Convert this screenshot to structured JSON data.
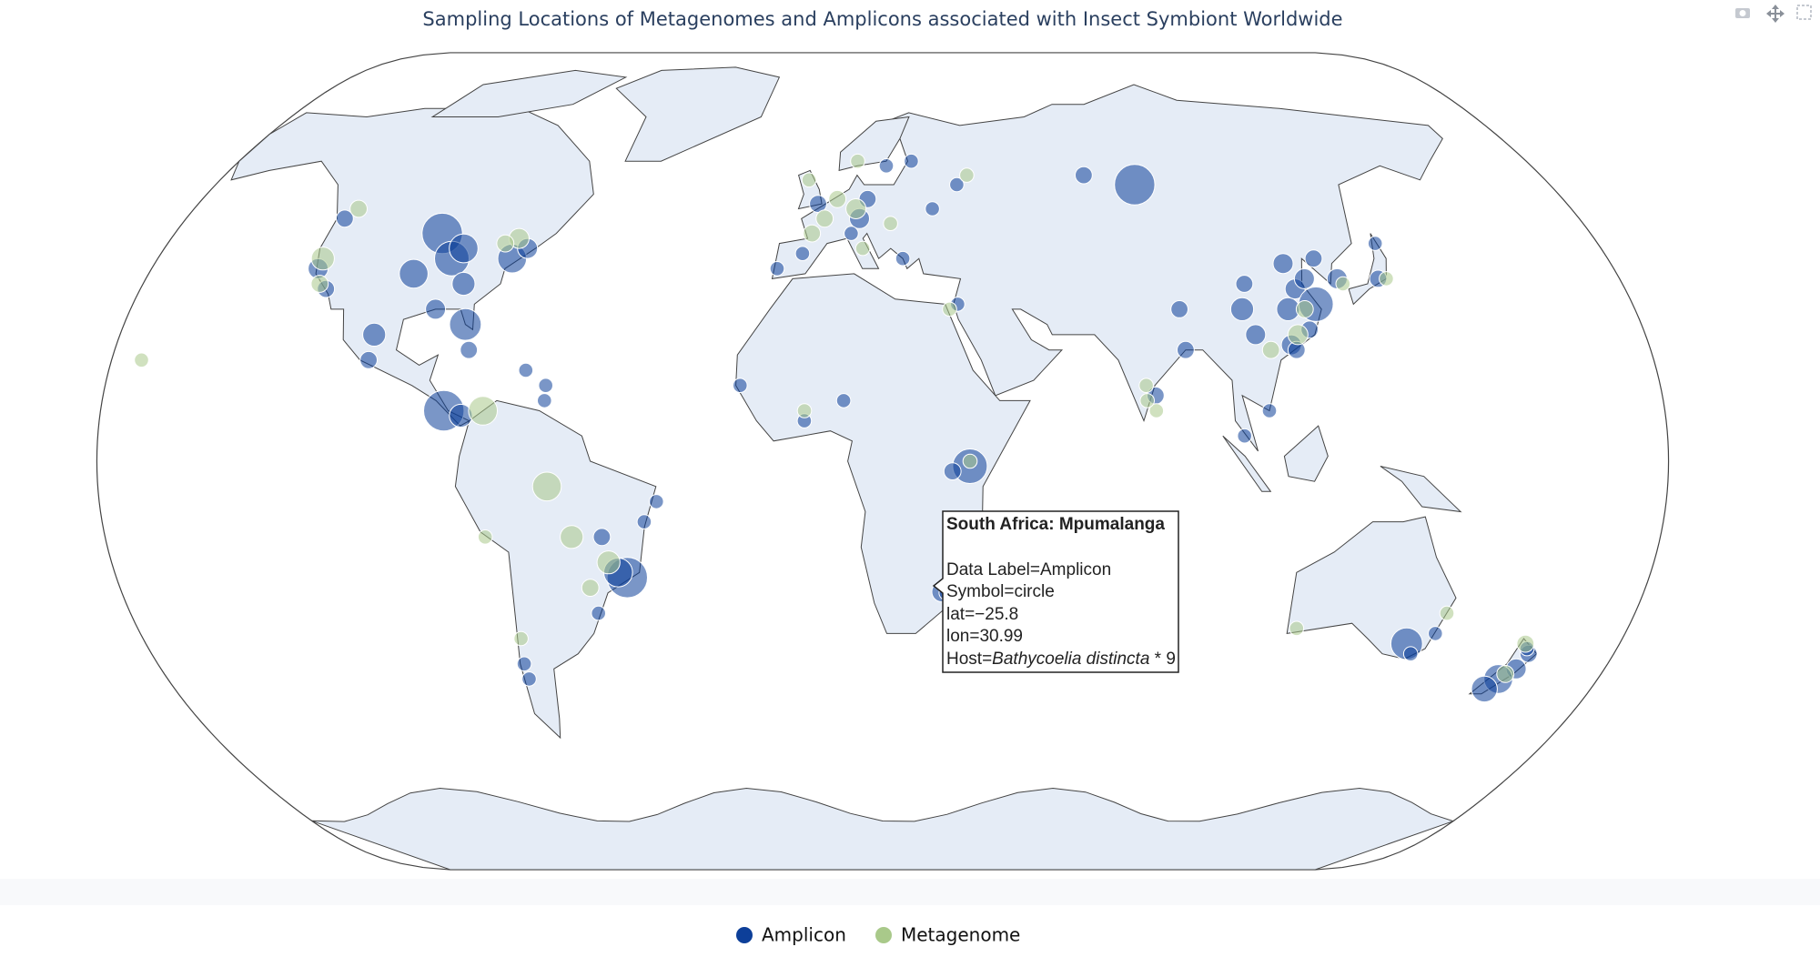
{
  "chart_data": {
    "type": "scattergeo",
    "title": "Sampling Locations of Metagenomes and Amplicons associated with Insect Symbiont Worldwide",
    "series": [
      {
        "name": "Amplicon",
        "color": "#0d3f99",
        "lat": [
          45,
          40,
          42,
          37,
          35,
          27,
          25,
          20,
          10,
          9,
          48,
          38,
          34,
          40,
          42,
          30,
          22,
          18,
          15,
          12,
          -23,
          -22,
          -12,
          -15,
          -8,
          -30,
          -40,
          -43,
          51,
          52,
          48,
          59,
          55,
          41,
          38,
          45,
          60,
          50,
          40,
          8,
          12,
          -1,
          -2,
          -25.8,
          -26,
          15,
          31,
          55,
          57,
          30,
          22,
          13,
          35,
          30,
          25,
          30,
          34,
          39,
          36,
          31,
          23,
          40,
          36,
          36,
          43,
          26,
          22,
          10,
          5,
          -36,
          -38,
          -34,
          -41,
          -43,
          -45,
          -38,
          -37
        ],
        "lon": [
          -95,
          -90,
          -88,
          -98,
          -85,
          -82,
          -103,
          -103,
          -84,
          -80,
          -122,
          -122,
          -118,
          -75,
          -72,
          -90,
          -80,
          -66,
          -61,
          -61,
          -43,
          -45,
          -38,
          -48,
          -35,
          -51,
          -72,
          -72,
          0,
          13,
          11,
          18,
          37,
          -3,
          -9,
          9,
          25,
          30,
          22,
          -1,
          8,
          37,
          33,
          30.99,
          32,
          -16,
          35,
          85,
          72,
          88,
          88,
          80,
          105,
          103,
          105,
          114,
          117,
          116,
          120,
          121,
          113,
          124,
          128,
          138,
          141,
          118,
          114,
          106,
          100,
          145,
          147,
          151,
          175,
          172,
          170,
          176,
          175
        ],
        "sizes": [
          12,
          10,
          8,
          8,
          6,
          9,
          6,
          4,
          12,
          6,
          4,
          5,
          4,
          8,
          5,
          5,
          4,
          3,
          3,
          3,
          12,
          8,
          3,
          4,
          3,
          3,
          3,
          3,
          4,
          4,
          5,
          3,
          3,
          3,
          3,
          3,
          3,
          3,
          3,
          3,
          3,
          10,
          4,
          5,
          3,
          3,
          3,
          12,
          4,
          4,
          4,
          4,
          4,
          6,
          5,
          6,
          5,
          5,
          5,
          10,
          5,
          4,
          5,
          4,
          3,
          4,
          4,
          3,
          3,
          9,
          3,
          3,
          5,
          8,
          7,
          4,
          3
        ]
      },
      {
        "name": "Metagenome",
        "color": "#a9c98a",
        "lat": [
          50,
          40,
          35,
          44,
          43,
          10,
          -5,
          -15,
          -20,
          -25,
          -35,
          52,
          48,
          50,
          45,
          42,
          56,
          60,
          47,
          0,
          30,
          10,
          25,
          22,
          36,
          35,
          15,
          10,
          -15,
          -33,
          -30,
          -42,
          -36,
          57,
          20,
          30,
          12
        ],
        "lon": [
          -120,
          -122,
          -120,
          -75,
          -78,
          -75,
          -60,
          -55,
          -47,
          -52,
          -71,
          5,
          2,
          10,
          -1,
          12,
          -3,
          10,
          19,
          37,
          33,
          -1,
          115,
          108,
          140,
          129,
          78,
          80,
          -75,
          117,
          152,
          173,
          174,
          40,
          -156,
          118,
          78
        ],
        "sizes": [
          4,
          6,
          4,
          5,
          4,
          8,
          8,
          6,
          6,
          4,
          3,
          4,
          4,
          5,
          4,
          3,
          3,
          3,
          3,
          3,
          3,
          3,
          5,
          4,
          3,
          3,
          3,
          3,
          3,
          3,
          3,
          4,
          4,
          3,
          3,
          4,
          3
        ]
      }
    ],
    "tooltip": {
      "title": "South Africa: Mpumalanga",
      "lines": [
        "Data Label=Amplicon",
        "Symbol=circle",
        "lat=−25.8",
        "lon=30.99"
      ],
      "host_prefix": "Host=",
      "host_species": "Bathycoelia distincta",
      "host_suffix": " * 9"
    }
  }
}
